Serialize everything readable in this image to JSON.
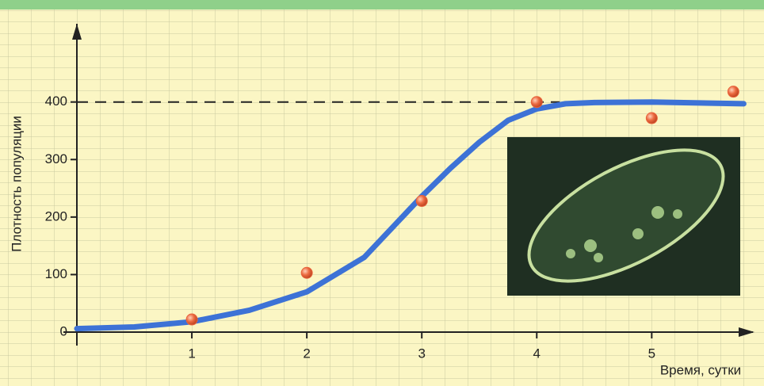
{
  "chart_data": {
    "type": "line",
    "x_label": "Время, сутки",
    "y_label": "Плотность популяции",
    "xlim": [
      0,
      5.88
    ],
    "ylim": [
      0,
      536
    ],
    "xticks": [
      1,
      2,
      3,
      4,
      5
    ],
    "yticks": [
      0,
      100,
      200,
      300,
      400
    ],
    "reference_line": 400,
    "series": [
      {
        "type": "line",
        "color": "#3d72d6",
        "x": [
          0,
          0.5,
          1,
          1.5,
          2,
          2.5,
          3,
          3.25,
          3.5,
          3.75,
          4,
          4.25,
          4.5,
          5,
          5.8
        ],
        "values": [
          6,
          9,
          18,
          38,
          70,
          130,
          236,
          285,
          330,
          368,
          388,
          397,
          399,
          400,
          397
        ]
      },
      {
        "type": "scatter",
        "color": "#e8633c",
        "x": [
          1,
          2,
          3,
          4,
          5,
          5.71
        ],
        "values": [
          22,
          103,
          228,
          400,
          372,
          418
        ]
      }
    ]
  }
}
